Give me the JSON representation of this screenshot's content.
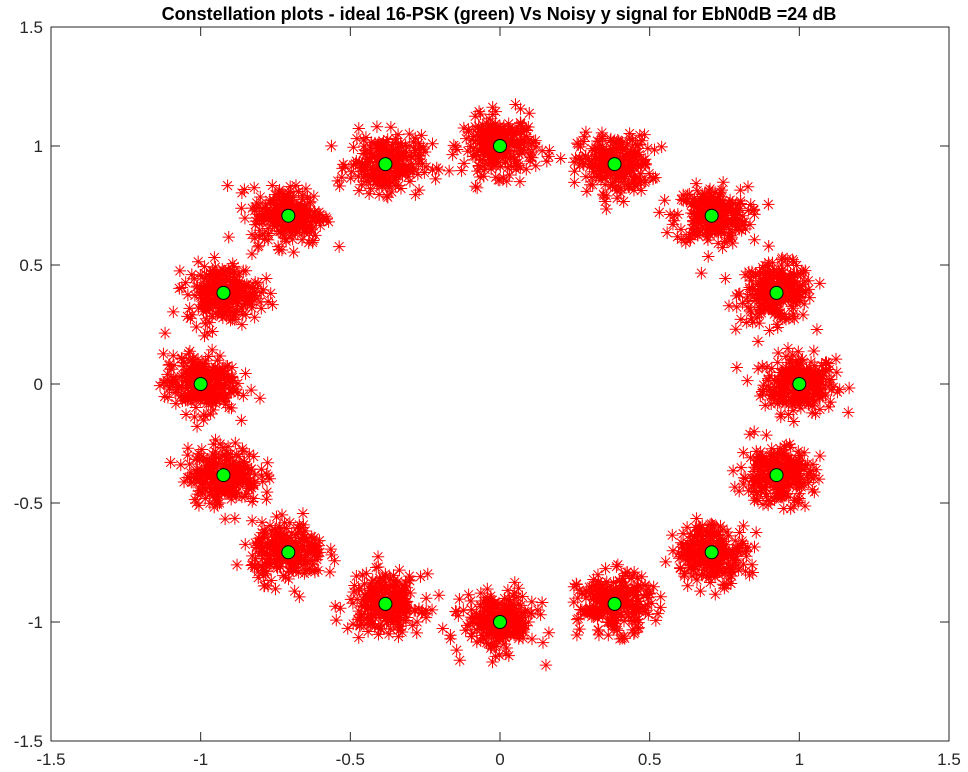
{
  "chart_data": {
    "type": "scatter",
    "title": "Constellation plots - ideal 16-PSK (green) Vs Noisy y signal for EbN0dB =24 dB",
    "xlabel": "",
    "ylabel": "",
    "xlim": [
      -1.5,
      1.5
    ],
    "ylim": [
      -1.5,
      1.5
    ],
    "x_ticks": [
      -1.5,
      -1,
      -0.5,
      0,
      0.5,
      1,
      1.5
    ],
    "x_tick_labels": [
      "-1.5",
      "-1",
      "-0.5",
      "0",
      "0.5",
      "1",
      "1.5"
    ],
    "y_ticks": [
      -1.5,
      -1,
      -0.5,
      0,
      0.5,
      1,
      1.5
    ],
    "y_tick_labels": [
      "-1.5",
      "-1",
      "-0.5",
      "0",
      "0.5",
      "1",
      "1.5"
    ],
    "grid": false,
    "series": [
      {
        "marker": "asterisk",
        "color": "#ff0000",
        "noise_std": 0.06,
        "samples_per_symbol": 260,
        "centers": [
          [
            1,
            0
          ],
          [
            0.9239,
            0.3827
          ],
          [
            0.7071,
            0.7071
          ],
          [
            0.3827,
            0.9239
          ],
          [
            0,
            1
          ],
          [
            -0.3827,
            0.9239
          ],
          [
            -0.7071,
            0.7071
          ],
          [
            -0.9239,
            0.3827
          ],
          [
            -1,
            0
          ],
          [
            -0.9239,
            -0.3827
          ],
          [
            -0.7071,
            -0.7071
          ],
          [
            -0.3827,
            -0.9239
          ],
          [
            0,
            -1
          ],
          [
            0.3827,
            -0.9239
          ],
          [
            0.7071,
            -0.7071
          ],
          [
            0.9239,
            -0.3827
          ]
        ]
      },
      {
        "marker": "circle",
        "color": "#00ff00",
        "edge_color": "#000000",
        "points": [
          [
            1,
            0
          ],
          [
            0.9239,
            0.3827
          ],
          [
            0.7071,
            0.7071
          ],
          [
            0.3827,
            0.9239
          ],
          [
            0,
            1
          ],
          [
            -0.3827,
            0.9239
          ],
          [
            -0.7071,
            0.7071
          ],
          [
            -0.9239,
            0.3827
          ],
          [
            -1,
            0
          ],
          [
            -0.9239,
            -0.3827
          ],
          [
            -0.7071,
            -0.7071
          ],
          [
            -0.3827,
            -0.9239
          ],
          [
            0,
            -1
          ],
          [
            0.3827,
            -0.9239
          ],
          [
            0.7071,
            -0.7071
          ],
          [
            0.9239,
            -0.3827
          ]
        ]
      }
    ]
  }
}
